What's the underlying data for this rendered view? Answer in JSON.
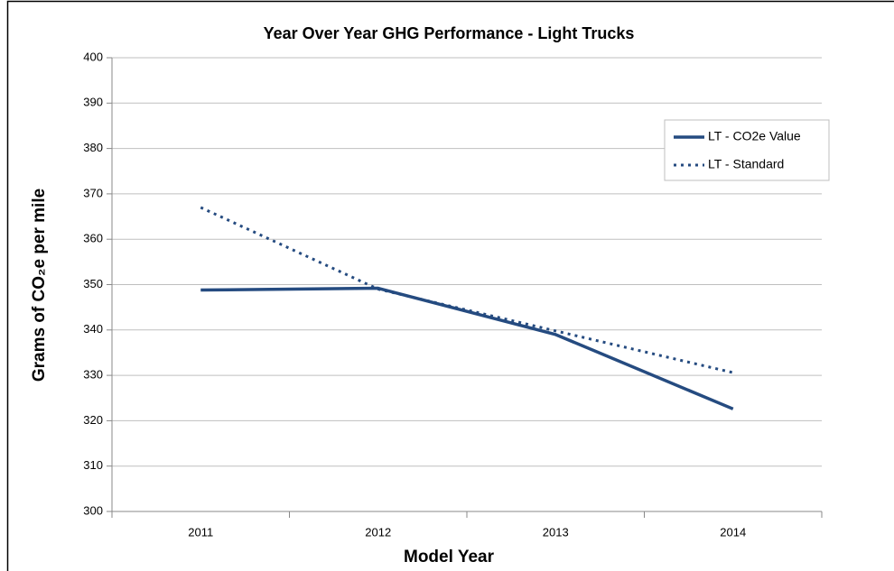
{
  "chart_data": {
    "type": "line",
    "title": "Year Over Year GHG Performance - Light Trucks",
    "x_label": "Model Year",
    "y_label": "Grams of CO₂e per mile",
    "categories": [
      "2011",
      "2012",
      "2013",
      "2014"
    ],
    "series": [
      {
        "name": "LT - CO2e Value",
        "color": "#254b80",
        "style": "solid",
        "values": [
          348.8,
          349.2,
          339,
          322.6
        ]
      },
      {
        "name": "LT - Standard",
        "color": "#254b80",
        "style": "dotted",
        "values": [
          367,
          349,
          339.8,
          330.6
        ]
      }
    ],
    "ylim": [
      300,
      400
    ],
    "yticks": [
      300,
      310,
      320,
      330,
      340,
      350,
      360,
      370,
      380,
      390,
      400
    ],
    "grid": true,
    "legend_position": "upper right"
  }
}
